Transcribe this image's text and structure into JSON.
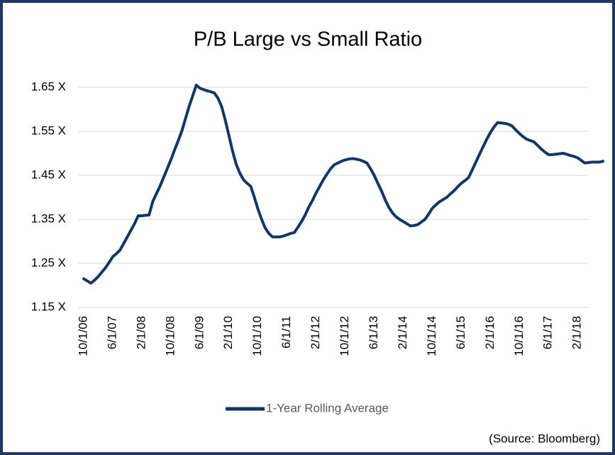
{
  "chart_data": {
    "type": "line",
    "title": "P/B Large vs Small Ratio",
    "source": "(Source: Bloomberg)",
    "categories": [
      "10/1/06",
      null,
      null,
      null,
      null,
      null,
      null,
      null,
      "6/1/07",
      null,
      null,
      null,
      null,
      null,
      null,
      null,
      "2/1/08",
      null,
      null,
      null,
      null,
      null,
      null,
      null,
      "10/1/08",
      null,
      null,
      null,
      null,
      null,
      null,
      null,
      "6/1/09",
      null,
      null,
      null,
      null,
      null,
      null,
      null,
      "2/1/10",
      null,
      null,
      null,
      null,
      null,
      null,
      null,
      "10/1/10",
      null,
      null,
      null,
      null,
      null,
      null,
      null,
      "6/1/11",
      null,
      null,
      null,
      null,
      null,
      null,
      null,
      "2/1/12",
      null,
      null,
      null,
      null,
      null,
      null,
      null,
      "10/1/12",
      null,
      null,
      null,
      null,
      null,
      null,
      null,
      "6/1/13",
      null,
      null,
      null,
      null,
      null,
      null,
      null,
      "2/1/14",
      null,
      null,
      null,
      null,
      null,
      null,
      null,
      "10/1/14",
      null,
      null,
      null,
      null,
      null,
      null,
      null,
      "6/1/15",
      null,
      null,
      null,
      null,
      null,
      null,
      null,
      "2/1/16",
      null,
      null,
      null,
      null,
      null,
      null,
      null,
      "10/1/16",
      null,
      null,
      null,
      null,
      null,
      null,
      null,
      "6/1/17",
      null,
      null,
      null,
      null,
      null,
      null,
      null,
      "2/1/18",
      null,
      null,
      null,
      null,
      null,
      null,
      null
    ],
    "series": [
      {
        "name": "1-Year Rolling Average",
        "color": "#123764",
        "values": [
          1.215,
          1.21,
          1.205,
          1.212,
          1.22,
          1.23,
          1.24,
          1.252,
          1.265,
          1.272,
          1.28,
          1.295,
          1.31,
          1.325,
          1.34,
          1.358,
          1.358,
          1.359,
          1.36,
          1.39,
          1.408,
          1.425,
          1.445,
          1.465,
          1.485,
          1.507,
          1.528,
          1.55,
          1.578,
          1.606,
          1.63,
          1.655,
          1.648,
          1.645,
          1.642,
          1.64,
          1.637,
          1.625,
          1.606,
          1.575,
          1.54,
          1.505,
          1.475,
          1.455,
          1.44,
          1.432,
          1.425,
          1.4,
          1.373,
          1.35,
          1.33,
          1.318,
          1.31,
          1.31,
          1.31,
          1.312,
          1.315,
          1.318,
          1.32,
          1.332,
          1.345,
          1.36,
          1.378,
          1.393,
          1.41,
          1.425,
          1.44,
          1.453,
          1.465,
          1.474,
          1.478,
          1.482,
          1.485,
          1.487,
          1.488,
          1.487,
          1.485,
          1.482,
          1.478,
          1.465,
          1.45,
          1.432,
          1.415,
          1.395,
          1.378,
          1.365,
          1.356,
          1.35,
          1.345,
          1.34,
          1.335,
          1.336,
          1.338,
          1.344,
          1.35,
          1.362,
          1.375,
          1.383,
          1.39,
          1.395,
          1.4,
          1.408,
          1.415,
          1.424,
          1.432,
          1.438,
          1.445,
          1.462,
          1.48,
          1.498,
          1.515,
          1.532,
          1.547,
          1.56,
          1.57,
          1.569,
          1.568,
          1.566,
          1.562,
          1.553,
          1.545,
          1.538,
          1.532,
          1.529,
          1.526,
          1.518,
          1.51,
          1.503,
          1.497,
          1.497,
          1.498,
          1.499,
          1.5,
          1.498,
          1.495,
          1.493,
          1.49,
          1.484,
          1.478,
          1.479,
          1.48,
          1.48,
          1.48,
          1.482
        ]
      }
    ],
    "ylim": [
      1.15,
      1.7
    ],
    "yticks": [
      {
        "value": 1.15,
        "label": "1.15 X"
      },
      {
        "value": 1.25,
        "label": "1.25 X"
      },
      {
        "value": 1.35,
        "label": "1.35 X"
      },
      {
        "value": 1.45,
        "label": "1.45 X"
      },
      {
        "value": 1.55,
        "label": "1.55 X"
      },
      {
        "value": 1.65,
        "label": "1.65 X"
      }
    ],
    "grid": true,
    "legend": "bottom"
  }
}
